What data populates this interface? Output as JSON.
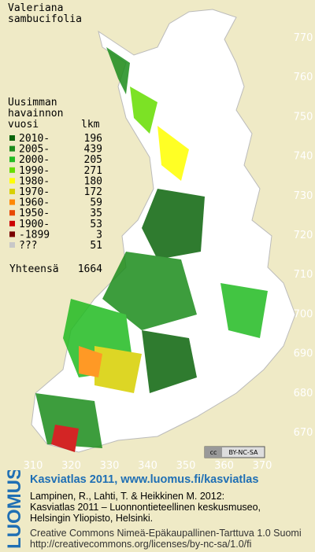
{
  "map": {
    "title": [
      "Valeriana",
      "sambucifolia"
    ],
    "legend": {
      "header": [
        "Uusimman",
        "havainnon"
      ],
      "col_year": "vuosi",
      "col_count": "lkm",
      "rows": [
        {
          "label": "2010-",
          "count": 196,
          "color": "#0b640b"
        },
        {
          "label": "2005-",
          "count": 439,
          "color": "#1c8c1c"
        },
        {
          "label": "2000-",
          "count": 205,
          "color": "#22bb22"
        },
        {
          "label": "1990-",
          "count": 271,
          "color": "#66dd00"
        },
        {
          "label": "1980-",
          "count": 180,
          "color": "#ffff00"
        },
        {
          "label": "1970-",
          "count": 172,
          "color": "#d8d000"
        },
        {
          "label": "1960-",
          "count": 59,
          "color": "#ff8800"
        },
        {
          "label": "1950-",
          "count": 35,
          "color": "#e84800"
        },
        {
          "label": "1900-",
          "count": 53,
          "color": "#cc0000"
        },
        {
          "label": "-1899",
          "count": 3,
          "color": "#7a0000"
        },
        {
          "label": "???",
          "count": 51,
          "color": "#c8c8c8"
        }
      ],
      "total_label": "Yhteensä",
      "total": 1664
    },
    "x_axis": [
      310,
      320,
      330,
      340,
      350,
      360,
      370
    ],
    "y_axis": [
      670,
      680,
      690,
      700,
      710,
      720,
      730,
      740,
      750,
      760,
      770
    ],
    "badge": [
      "cc",
      "BY-NC-SA"
    ]
  },
  "footer": {
    "brand": "LUOMUS",
    "headline": "Kasviatlas 2011, www.luomus.fi/kasviatlas",
    "citation": [
      "Lampinen, R., Lahti, T. & Heikkinen M. 2012:",
      "Kasviatlas 2011 – Luonnontieteellinen keskusmuseo,",
      "Helsingin Yliopisto, Helsinki."
    ],
    "license": [
      "Creative Commons Nimeä-Epäkaupallinen-Tarttuva 1.0 Suomi",
      "http://creativecommons.org/licenses/by-nc-sa/1.0/fi"
    ]
  }
}
